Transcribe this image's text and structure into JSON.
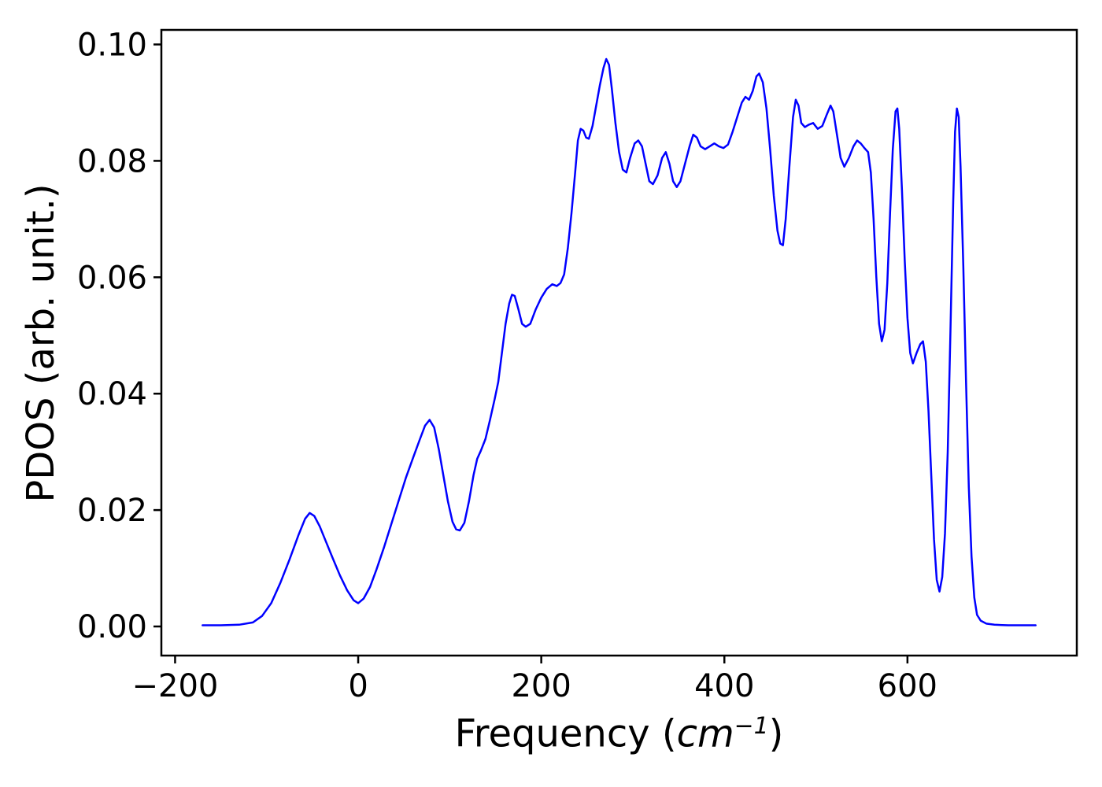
{
  "figure": {
    "background_color": "#ffffff",
    "frame_color": "#000000",
    "tick_label_color": "#000000"
  },
  "chart_data": {
    "type": "line",
    "title": "",
    "xlabel": "Frequency (cm−1)",
    "xlabel_parts": {
      "prefix": "Frequency (",
      "italic": "cm",
      "superscript": "−1",
      "suffix": ")"
    },
    "ylabel": "PDOS (arb. unit.)",
    "xlim": [
      -215,
      785
    ],
    "ylim": [
      -0.005,
      0.1025
    ],
    "grid": false,
    "legend": "none",
    "x_ticks": [
      -200,
      0,
      200,
      400,
      600
    ],
    "x_tick_labels": [
      "−200",
      "0",
      "200",
      "400",
      "600"
    ],
    "y_ticks": [
      0.0,
      0.02,
      0.04,
      0.06,
      0.08,
      0.1
    ],
    "y_tick_labels": [
      "0.00",
      "0.02",
      "0.04",
      "0.06",
      "0.08",
      "0.10"
    ],
    "series": [
      {
        "name": "PDOS",
        "color": "#0000ff",
        "line_width": 2.5,
        "points": [
          [
            -170,
            0.0002
          ],
          [
            -150,
            0.0002
          ],
          [
            -130,
            0.0003
          ],
          [
            -115,
            0.0007
          ],
          [
            -105,
            0.0018
          ],
          [
            -95,
            0.004
          ],
          [
            -85,
            0.0075
          ],
          [
            -75,
            0.0115
          ],
          [
            -65,
            0.0158
          ],
          [
            -58,
            0.0185
          ],
          [
            -53,
            0.0195
          ],
          [
            -48,
            0.019
          ],
          [
            -42,
            0.0172
          ],
          [
            -35,
            0.0145
          ],
          [
            -28,
            0.0118
          ],
          [
            -20,
            0.0088
          ],
          [
            -12,
            0.0062
          ],
          [
            -5,
            0.0045
          ],
          [
            0,
            0.004
          ],
          [
            6,
            0.0048
          ],
          [
            13,
            0.0068
          ],
          [
            20,
            0.0098
          ],
          [
            28,
            0.0135
          ],
          [
            36,
            0.0175
          ],
          [
            44,
            0.0215
          ],
          [
            52,
            0.0255
          ],
          [
            60,
            0.029
          ],
          [
            67,
            0.032
          ],
          [
            73,
            0.0345
          ],
          [
            78,
            0.0355
          ],
          [
            83,
            0.0342
          ],
          [
            88,
            0.0305
          ],
          [
            93,
            0.026
          ],
          [
            98,
            0.0215
          ],
          [
            103,
            0.018
          ],
          [
            107,
            0.0167
          ],
          [
            111,
            0.0165
          ],
          [
            116,
            0.0178
          ],
          [
            121,
            0.0215
          ],
          [
            126,
            0.026
          ],
          [
            130,
            0.0288
          ],
          [
            134,
            0.0302
          ],
          [
            139,
            0.0322
          ],
          [
            144,
            0.0355
          ],
          [
            149,
            0.039
          ],
          [
            153,
            0.042
          ],
          [
            157,
            0.047
          ],
          [
            161,
            0.052
          ],
          [
            165,
            0.0555
          ],
          [
            168,
            0.057
          ],
          [
            171,
            0.0568
          ],
          [
            175,
            0.0545
          ],
          [
            179,
            0.052
          ],
          [
            183,
            0.0515
          ],
          [
            188,
            0.052
          ],
          [
            194,
            0.0545
          ],
          [
            200,
            0.0565
          ],
          [
            206,
            0.058
          ],
          [
            212,
            0.0588
          ],
          [
            217,
            0.0585
          ],
          [
            221,
            0.059
          ],
          [
            225,
            0.0605
          ],
          [
            229,
            0.065
          ],
          [
            233,
            0.071
          ],
          [
            237,
            0.078
          ],
          [
            240,
            0.0835
          ],
          [
            243,
            0.0855
          ],
          [
            246,
            0.0852
          ],
          [
            249,
            0.084
          ],
          [
            252,
            0.0838
          ],
          [
            256,
            0.086
          ],
          [
            260,
            0.0895
          ],
          [
            264,
            0.093
          ],
          [
            268,
            0.096
          ],
          [
            271,
            0.0975
          ],
          [
            274,
            0.0965
          ],
          [
            277,
            0.0925
          ],
          [
            281,
            0.0865
          ],
          [
            285,
            0.0815
          ],
          [
            289,
            0.0785
          ],
          [
            293,
            0.078
          ],
          [
            297,
            0.0805
          ],
          [
            302,
            0.083
          ],
          [
            306,
            0.0835
          ],
          [
            310,
            0.0825
          ],
          [
            314,
            0.0795
          ],
          [
            318,
            0.0765
          ],
          [
            322,
            0.076
          ],
          [
            327,
            0.0775
          ],
          [
            332,
            0.0805
          ],
          [
            336,
            0.0815
          ],
          [
            340,
            0.0795
          ],
          [
            344,
            0.0765
          ],
          [
            348,
            0.0755
          ],
          [
            352,
            0.0765
          ],
          [
            357,
            0.0795
          ],
          [
            362,
            0.0825
          ],
          [
            366,
            0.0845
          ],
          [
            370,
            0.084
          ],
          [
            374,
            0.0825
          ],
          [
            379,
            0.082
          ],
          [
            384,
            0.0825
          ],
          [
            389,
            0.083
          ],
          [
            394,
            0.0825
          ],
          [
            399,
            0.0822
          ],
          [
            404,
            0.0828
          ],
          [
            409,
            0.085
          ],
          [
            414,
            0.0875
          ],
          [
            419,
            0.09
          ],
          [
            423,
            0.091
          ],
          [
            427,
            0.0905
          ],
          [
            431,
            0.092
          ],
          [
            435,
            0.0945
          ],
          [
            438,
            0.095
          ],
          [
            442,
            0.0935
          ],
          [
            446,
            0.089
          ],
          [
            450,
            0.082
          ],
          [
            454,
            0.074
          ],
          [
            458,
            0.068
          ],
          [
            461,
            0.0658
          ],
          [
            464,
            0.0655
          ],
          [
            467,
            0.07
          ],
          [
            471,
            0.079
          ],
          [
            475,
            0.0875
          ],
          [
            478,
            0.0905
          ],
          [
            481,
            0.0895
          ],
          [
            484,
            0.0865
          ],
          [
            488,
            0.0858
          ],
          [
            492,
            0.0862
          ],
          [
            497,
            0.0865
          ],
          [
            502,
            0.0855
          ],
          [
            507,
            0.086
          ],
          [
            512,
            0.088
          ],
          [
            516,
            0.0895
          ],
          [
            519,
            0.0885
          ],
          [
            523,
            0.0845
          ],
          [
            527,
            0.0805
          ],
          [
            531,
            0.079
          ],
          [
            536,
            0.0805
          ],
          [
            541,
            0.0825
          ],
          [
            545,
            0.0835
          ],
          [
            549,
            0.083
          ],
          [
            553,
            0.0822
          ],
          [
            557,
            0.0815
          ],
          [
            560,
            0.078
          ],
          [
            563,
            0.07
          ],
          [
            566,
            0.06
          ],
          [
            569,
            0.052
          ],
          [
            572,
            0.049
          ],
          [
            575,
            0.051
          ],
          [
            578,
            0.059
          ],
          [
            581,
            0.071
          ],
          [
            584,
            0.082
          ],
          [
            587,
            0.0885
          ],
          [
            589,
            0.089
          ],
          [
            591,
            0.0855
          ],
          [
            594,
            0.075
          ],
          [
            597,
            0.063
          ],
          [
            600,
            0.053
          ],
          [
            603,
            0.047
          ],
          [
            606,
            0.0452
          ],
          [
            610,
            0.047
          ],
          [
            614,
            0.0485
          ],
          [
            617,
            0.049
          ],
          [
            620,
            0.0455
          ],
          [
            623,
            0.037
          ],
          [
            626,
            0.026
          ],
          [
            629,
            0.015
          ],
          [
            632,
            0.008
          ],
          [
            635,
            0.006
          ],
          [
            638,
            0.0085
          ],
          [
            641,
            0.016
          ],
          [
            644,
            0.03
          ],
          [
            647,
            0.051
          ],
          [
            650,
            0.073
          ],
          [
            652,
            0.085
          ],
          [
            654,
            0.089
          ],
          [
            656,
            0.0875
          ],
          [
            658,
            0.079
          ],
          [
            661,
            0.062
          ],
          [
            664,
            0.042
          ],
          [
            667,
            0.024
          ],
          [
            670,
            0.012
          ],
          [
            673,
            0.005
          ],
          [
            676,
            0.002
          ],
          [
            680,
            0.001
          ],
          [
            686,
            0.0005
          ],
          [
            695,
            0.0003
          ],
          [
            710,
            0.0002
          ],
          [
            740,
            0.0002
          ]
        ]
      }
    ]
  }
}
